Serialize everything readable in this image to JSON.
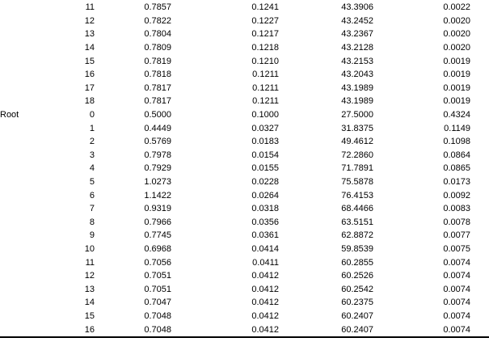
{
  "page": {
    "background_color": "#ffffff",
    "text_color": "#000000",
    "rule_color": "#000000"
  },
  "table": {
    "sections": [
      {
        "label": "",
        "rows": [
          [
            "11",
            "0.7857",
            "0.1241",
            "43.3906",
            "0.0022"
          ],
          [
            "12",
            "0.7822",
            "0.1227",
            "43.2452",
            "0.0020"
          ],
          [
            "13",
            "0.7804",
            "0.1217",
            "43.2367",
            "0.0020"
          ],
          [
            "14",
            "0.7809",
            "0.1218",
            "43.2128",
            "0.0020"
          ],
          [
            "15",
            "0.7819",
            "0.1210",
            "43.2153",
            "0.0019"
          ],
          [
            "16",
            "0.7818",
            "0.1211",
            "43.2043",
            "0.0019"
          ],
          [
            "17",
            "0.7817",
            "0.1211",
            "43.1989",
            "0.0019"
          ],
          [
            "18",
            "0.7817",
            "0.1211",
            "43.1989",
            "0.0019"
          ]
        ]
      },
      {
        "label": "Root",
        "rows": [
          [
            "0",
            "0.5000",
            "0.1000",
            "27.5000",
            "0.4324"
          ],
          [
            "1",
            "0.4449",
            "0.0327",
            "31.8375",
            "0.1149"
          ],
          [
            "2",
            "0.5769",
            "0.0183",
            "49.4612",
            "0.1098"
          ],
          [
            "3",
            "0.7978",
            "0.0154",
            "72.2860",
            "0.0864"
          ],
          [
            "4",
            "0.7929",
            "0.0155",
            "71.7891",
            "0.0865"
          ],
          [
            "5",
            "1.0273",
            "0.0228",
            "75.5878",
            "0.0173"
          ],
          [
            "6",
            "1.1422",
            "0.0264",
            "76.4153",
            "0.0092"
          ],
          [
            "7",
            "0.9319",
            "0.0318",
            "68.4466",
            "0.0083"
          ],
          [
            "8",
            "0.7966",
            "0.0356",
            "63.5151",
            "0.0078"
          ],
          [
            "9",
            "0.7745",
            "0.0361",
            "62.8872",
            "0.0077"
          ],
          [
            "10",
            "0.6968",
            "0.0414",
            "59.8539",
            "0.0075"
          ],
          [
            "11",
            "0.7056",
            "0.0411",
            "60.2855",
            "0.0074"
          ],
          [
            "12",
            "0.7051",
            "0.0412",
            "60.2526",
            "0.0074"
          ],
          [
            "13",
            "0.7051",
            "0.0412",
            "60.2542",
            "0.0074"
          ],
          [
            "14",
            "0.7047",
            "0.0412",
            "60.2375",
            "0.0074"
          ],
          [
            "15",
            "0.7048",
            "0.0412",
            "60.2407",
            "0.0074"
          ],
          [
            "16",
            "0.7048",
            "0.0412",
            "60.2407",
            "0.0074"
          ]
        ]
      }
    ]
  }
}
